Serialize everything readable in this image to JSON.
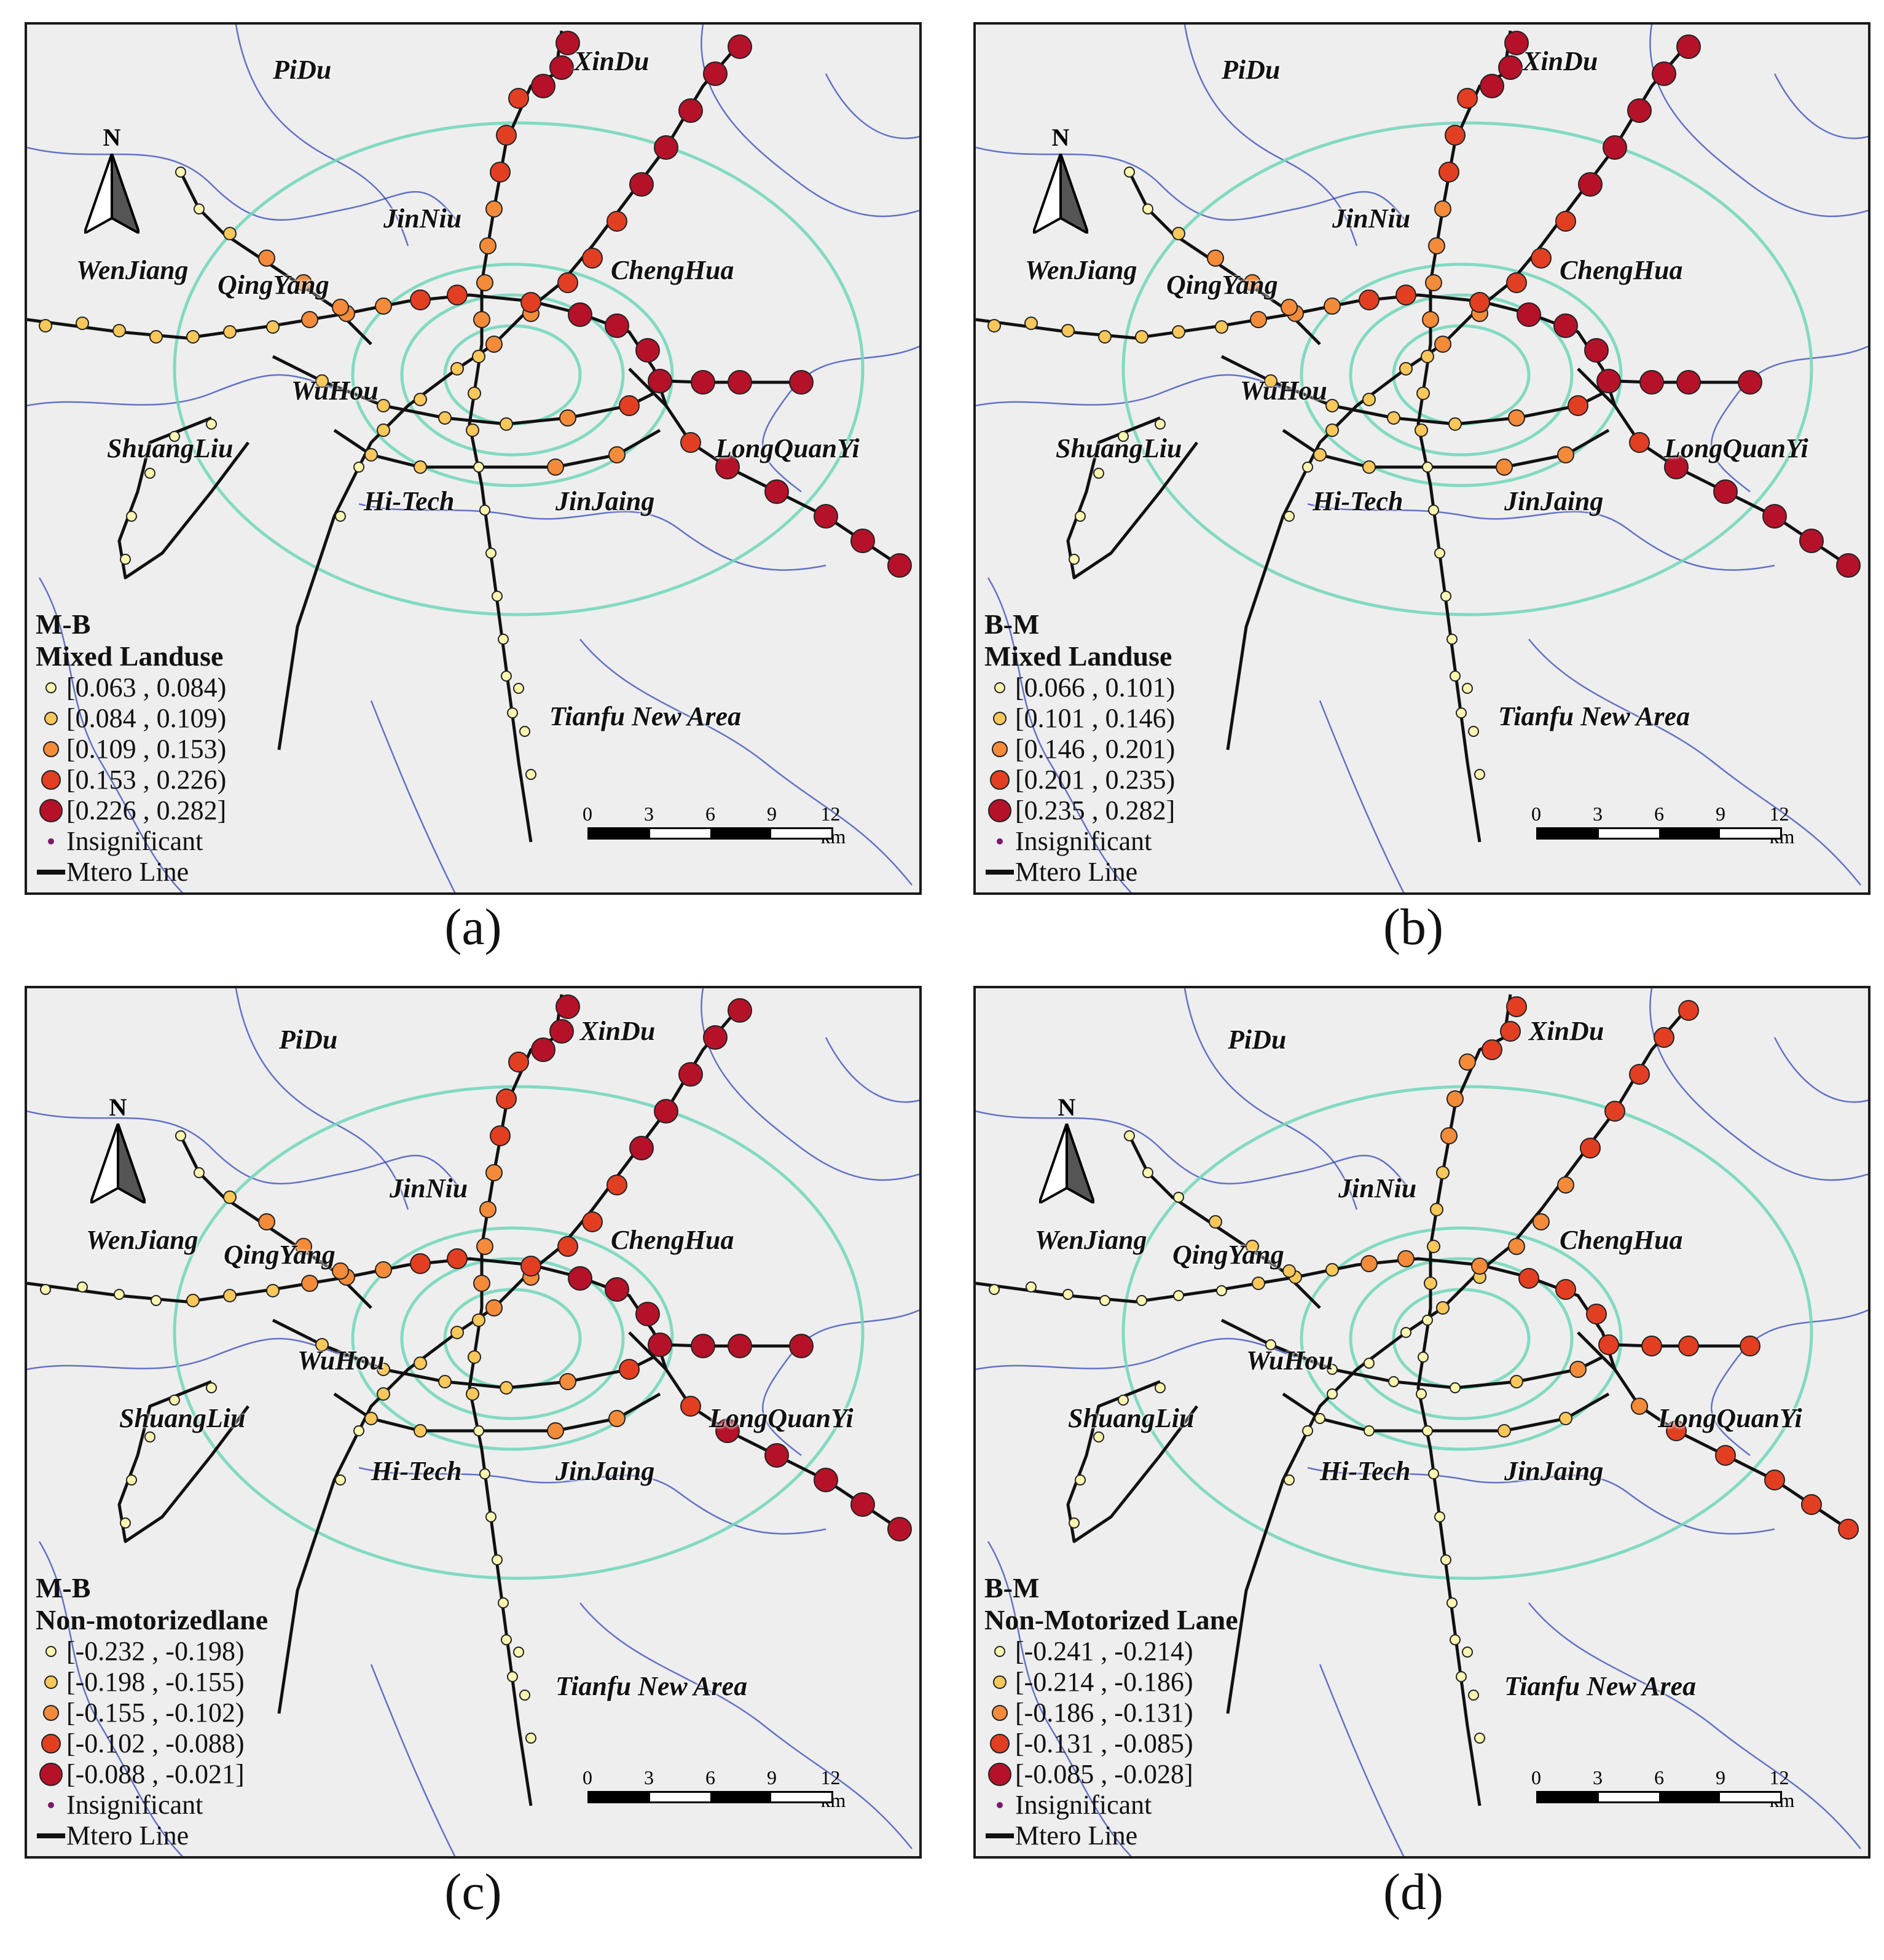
{
  "colors": {
    "class1": "#fdf6b0",
    "class2": "#f9c75a",
    "class3": "#f48b3a",
    "class4": "#e23f22",
    "class5": "#b5122a",
    "insignificant": "#7b1a6a",
    "metro_line": "#111111",
    "ring_road": "#6fd6b8",
    "district_boundary": "#3347b5",
    "background": "#eeeeef"
  },
  "place_names": {
    "pidu": "PiDu",
    "xindu": "XinDu",
    "jinniu": "JinNiu",
    "wenjiang": "WenJiang",
    "qingyang": "QingYang",
    "chenghua": "ChengHua",
    "wuhou": "WuHou",
    "shuangliu": "ShuangLiu",
    "longquanyi": "LongQuanYi",
    "hitech": "Hi-Tech",
    "jinjaing": "JinJaing",
    "tianfu": "Tianfu New Area"
  },
  "north_label": "N",
  "scale": {
    "ticks": [
      "0",
      "3",
      "6",
      "9",
      "12 km"
    ]
  },
  "panels": [
    {
      "caption": "(a)",
      "legend_code": "M-B",
      "legend_variable": "Mixed Landuse",
      "classes": [
        "[0.063 , 0.084)",
        "[0.084 , 0.109)",
        "[0.109 , 0.153)",
        "[0.153 , 0.226)",
        "[0.226 , 0.282]"
      ],
      "insignificant": "Insignificant",
      "metro_line": "Mtero Line"
    },
    {
      "caption": "(b)",
      "legend_code": "B-M",
      "legend_variable": "Mixed Landuse",
      "classes": [
        "[0.066 , 0.101)",
        "[0.101 , 0.146)",
        "[0.146 , 0.201)",
        "[0.201 , 0.235)",
        "[0.235 , 0.282]"
      ],
      "insignificant": "Insignificant",
      "metro_line": "Mtero Line"
    },
    {
      "caption": "(c)",
      "legend_code": "M-B",
      "legend_variable": "Non-motorizedlane",
      "classes": [
        "[-0.232 , -0.198)",
        "[-0.198 , -0.155)",
        "[-0.155 , -0.102)",
        "[-0.102 , -0.088)",
        "[-0.088 , -0.021]"
      ],
      "insignificant": "Insignificant",
      "metro_line": "Mtero Line"
    },
    {
      "caption": "(d)",
      "legend_code": "B-M",
      "legend_variable": "Non-Motorized Lane",
      "classes": [
        "[-0.241 , -0.214)",
        "[-0.214 , -0.186)",
        "[-0.186 , -0.131)",
        "[-0.131 , -0.085)",
        "[-0.085 , -0.028]"
      ],
      "insignificant": "Insignificant",
      "metro_line": "Mtero Line"
    }
  ]
}
